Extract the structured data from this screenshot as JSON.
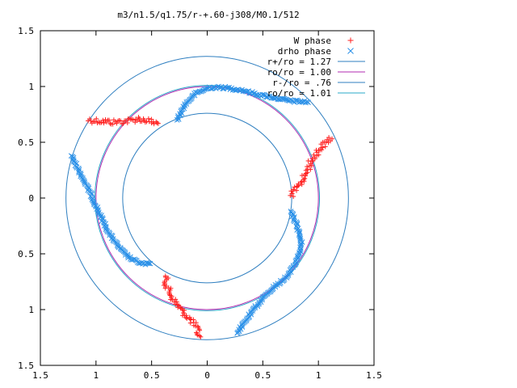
{
  "chart_data": {
    "type": "scatter",
    "title": "m3/n1.5/q1.75/r-+.60-j308/M0.1/512",
    "xlabel": "",
    "ylabel": "",
    "xlim": [
      -1.5,
      1.5
    ],
    "ylim": [
      -1.5,
      1.5
    ],
    "grid": false,
    "legend_position": "top-right",
    "x_ticks": [
      {
        "value": -1.5,
        "label": "1.5"
      },
      {
        "value": -1.0,
        "label": "1"
      },
      {
        "value": -0.5,
        "label": "0.5"
      },
      {
        "value": 0.0,
        "label": "0"
      },
      {
        "value": 0.5,
        "label": "0.5"
      },
      {
        "value": 1.0,
        "label": "1"
      },
      {
        "value": 1.5,
        "label": "1.5"
      }
    ],
    "y_ticks": [
      {
        "value": 1.5,
        "label": "1.5"
      },
      {
        "value": 1.0,
        "label": "1"
      },
      {
        "value": 0.5,
        "label": "0.5"
      },
      {
        "value": 0.0,
        "label": "0"
      },
      {
        "value": -0.5,
        "label": "0.5"
      },
      {
        "value": -1.0,
        "label": "1"
      },
      {
        "value": -1.5,
        "label": "1.5"
      }
    ],
    "circles": [
      {
        "name": "r+/ro = 1.27",
        "radius": 1.27,
        "color": "#2f7fc0"
      },
      {
        "name": "ro/ro = 1.00",
        "radius": 1.0,
        "color": "#b02bb0"
      },
      {
        "name": "r-/ro = .76",
        "radius": 0.76,
        "color": "#2f7fc0"
      },
      {
        "name": "ro/ro = 1.01",
        "radius": 1.01,
        "color": "#2aa8c8"
      }
    ],
    "series": [
      {
        "name": "W phase",
        "marker": "plus",
        "color": "#ff2020",
        "arms": [
          [
            [
              -1.07,
              0.7
            ],
            [
              -0.95,
              0.69
            ],
            [
              -0.85,
              0.68
            ],
            [
              -0.72,
              0.69
            ],
            [
              -0.62,
              0.71
            ],
            [
              -0.52,
              0.69
            ],
            [
              -0.43,
              0.66
            ]
          ],
          [
            [
              0.75,
              0.02
            ],
            [
              0.82,
              0.1
            ],
            [
              0.88,
              0.2
            ],
            [
              0.93,
              0.32
            ],
            [
              1.0,
              0.43
            ],
            [
              1.07,
              0.5
            ],
            [
              1.12,
              0.55
            ]
          ],
          [
            [
              -0.38,
              -0.7
            ],
            [
              -0.36,
              -0.8
            ],
            [
              -0.3,
              -0.92
            ],
            [
              -0.22,
              -1.02
            ],
            [
              -0.14,
              -1.1
            ],
            [
              -0.09,
              -1.18
            ],
            [
              -0.07,
              -1.26
            ]
          ]
        ]
      },
      {
        "name": "drho phase",
        "marker": "x",
        "color": "#2a90e8",
        "arms": [
          [
            [
              -0.27,
              0.7
            ],
            [
              -0.2,
              0.84
            ],
            [
              -0.1,
              0.94
            ],
            [
              0.02,
              0.99
            ],
            [
              0.15,
              0.99
            ],
            [
              0.3,
              0.97
            ],
            [
              0.45,
              0.93
            ],
            [
              0.6,
              0.9
            ],
            [
              0.75,
              0.87
            ],
            [
              0.92,
              0.86
            ]
          ],
          [
            [
              -1.22,
              0.38
            ],
            [
              -1.13,
              0.2
            ],
            [
              -1.04,
              0.02
            ],
            [
              -0.96,
              -0.16
            ],
            [
              -0.88,
              -0.32
            ],
            [
              -0.78,
              -0.46
            ],
            [
              -0.68,
              -0.55
            ],
            [
              -0.58,
              -0.59
            ],
            [
              -0.5,
              -0.59
            ]
          ],
          [
            [
              0.75,
              -0.12
            ],
            [
              0.81,
              -0.25
            ],
            [
              0.85,
              -0.42
            ],
            [
              0.8,
              -0.58
            ],
            [
              0.72,
              -0.7
            ],
            [
              0.6,
              -0.8
            ],
            [
              0.5,
              -0.9
            ],
            [
              0.4,
              -1.02
            ],
            [
              0.32,
              -1.13
            ],
            [
              0.26,
              -1.22
            ]
          ]
        ]
      }
    ]
  }
}
